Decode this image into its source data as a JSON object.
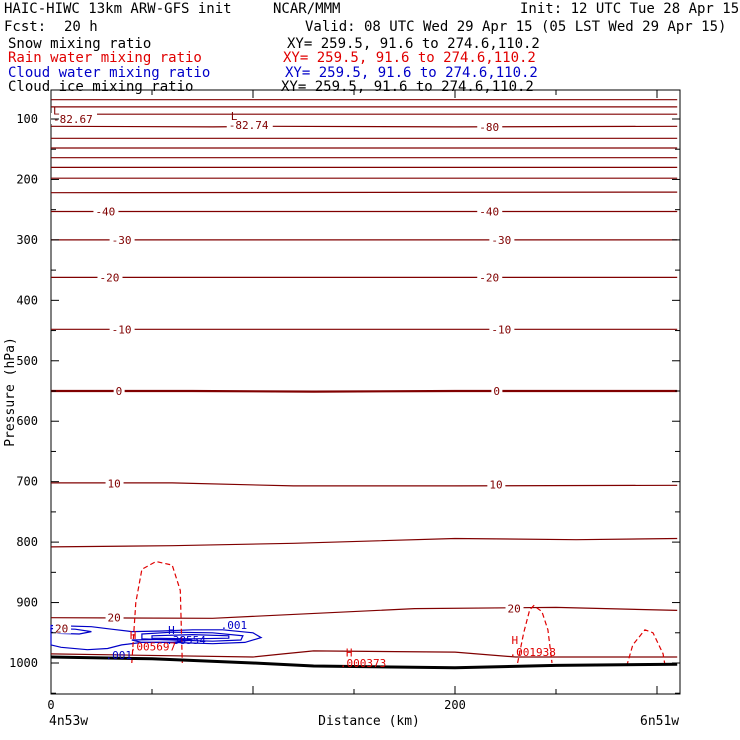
{
  "header": {
    "model": "HAIC-HIWC 13km ARW-GFS init",
    "org": "NCAR/MMM",
    "init": "Init: 12 UTC Tue 28 Apr 15",
    "fcst_label": "Fcst:",
    "fcst_value": "20 h",
    "valid": "Valid: 08 UTC Wed 29 Apr 15 (05 LST Wed 29 Apr 15)",
    "fields": [
      {
        "name": "Snow mixing ratio",
        "xy": "XY= 259.5, 91.6 to 274.6,110.2",
        "color": "#000000"
      },
      {
        "name": "Rain water mixing ratio",
        "xy": "XY= 259.5, 91.6 to 274.6,110.2",
        "color": "#e00000"
      },
      {
        "name": "Cloud water mixing ratio",
        "xy": "XY= 259.5, 91.6 to 274.6,110.2",
        "color": "#0000c8"
      },
      {
        "name": "Cloud ice mixing ratio",
        "xy": "XY= 259.5, 91.6 to 274.6,110.2",
        "color": "#000000"
      }
    ]
  },
  "chart_data": {
    "type": "cross-section contour",
    "ylabel": "Pressure (hPa)",
    "xlabel": "Distance (km)",
    "y_ticks": [
      100,
      200,
      300,
      400,
      500,
      600,
      700,
      800,
      900,
      1000
    ],
    "x_ticks": [
      0,
      200
    ],
    "ylim": [
      1050,
      50
    ],
    "xlim": [
      0,
      310
    ],
    "left_endpoint": "4n53w",
    "right_endpoint": "6n51w",
    "colors": {
      "temperature": "#800000",
      "rain": "#e00000",
      "cloud_water": "#0000c8",
      "terrain": "#000000"
    },
    "temperature_labels": [
      {
        "text": "-82.67",
        "x": 1,
        "p": 100
      },
      {
        "text": "-82.74",
        "x": 88,
        "p": 110
      },
      {
        "text": "-80",
        "x": 212,
        "p": 113
      },
      {
        "text": "-40",
        "x": 22,
        "p": 253
      },
      {
        "text": "-40",
        "x": 212,
        "p": 253
      },
      {
        "text": "-30",
        "x": 30,
        "p": 300
      },
      {
        "text": "-30",
        "x": 218,
        "p": 300
      },
      {
        "text": "-20",
        "x": 24,
        "p": 362
      },
      {
        "text": "-20",
        "x": 212,
        "p": 362
      },
      {
        "text": "-10",
        "x": 30,
        "p": 448
      },
      {
        "text": "-10",
        "x": 218,
        "p": 448
      },
      {
        "text": "0",
        "x": 32,
        "p": 550
      },
      {
        "text": "0",
        "x": 219,
        "p": 550
      },
      {
        "text": "10",
        "x": 28,
        "p": 703
      },
      {
        "text": "10",
        "x": 217,
        "p": 705
      },
      {
        "text": "20",
        "x": 28,
        "p": 925
      },
      {
        "text": "20",
        "x": 226,
        "p": 910
      },
      {
        "text": "20",
        "x": 2,
        "p": 943
      }
    ],
    "extrema_labels": [
      {
        "text": "L",
        "x": 1,
        "p": 86,
        "color": "#800000"
      },
      {
        "text": "L",
        "x": 89,
        "p": 95,
        "color": "#800000"
      },
      {
        "text": "H",
        "x": 58,
        "p": 945,
        "color": "#0000c8"
      },
      {
        "text": ".38554",
        "x": 57,
        "p": 962,
        "color": "#0000c8"
      },
      {
        "text": ".001",
        "x": 84,
        "p": 937,
        "color": "#0000c8"
      },
      {
        "text": ".001",
        "x": 27,
        "p": 987,
        "color": "#0000c8"
      },
      {
        "text": "H",
        "x": 39,
        "p": 954,
        "color": "#e00000"
      },
      {
        "text": ".005697",
        "x": 39,
        "p": 973,
        "color": "#e00000"
      },
      {
        "text": "H",
        "x": 146,
        "p": 983,
        "color": "#e00000"
      },
      {
        "text": ".000373",
        "x": 143,
        "p": 1000,
        "color": "#e00000"
      },
      {
        "text": "H",
        "x": 228,
        "p": 962,
        "color": "#e00000"
      },
      {
        "text": ".001938",
        "x": 227,
        "p": 982,
        "color": "#e00000"
      }
    ],
    "isotherms": [
      [
        [
          0,
          68
        ],
        [
          310,
          68
        ]
      ],
      [
        [
          0,
          80
        ],
        [
          310,
          80
        ]
      ],
      [
        [
          0,
          92
        ],
        [
          310,
          92
        ]
      ],
      [
        [
          0,
          112
        ],
        [
          80,
          113
        ],
        [
          110,
          112
        ],
        [
          200,
          113
        ],
        [
          310,
          112
        ]
      ],
      [
        [
          0,
          132
        ],
        [
          310,
          132
        ]
      ],
      [
        [
          0,
          148
        ],
        [
          310,
          148
        ]
      ],
      [
        [
          0,
          164
        ],
        [
          310,
          164
        ]
      ],
      [
        [
          0,
          180
        ],
        [
          310,
          180
        ]
      ],
      [
        [
          0,
          198
        ],
        [
          310,
          198
        ]
      ],
      [
        [
          0,
          222
        ],
        [
          310,
          221
        ]
      ],
      [
        [
          0,
          253
        ],
        [
          310,
          253
        ]
      ],
      [
        [
          0,
          300
        ],
        [
          310,
          300
        ]
      ],
      [
        [
          0,
          362
        ],
        [
          310,
          362
        ]
      ],
      [
        [
          0,
          448
        ],
        [
          310,
          448
        ]
      ],
      [
        [
          0,
          550
        ],
        [
          70,
          550
        ],
        [
          130,
          551
        ],
        [
          200,
          550
        ],
        [
          310,
          550
        ]
      ],
      [
        [
          0,
          702
        ],
        [
          60,
          702
        ],
        [
          120,
          707
        ],
        [
          200,
          707
        ],
        [
          310,
          706
        ]
      ],
      [
        [
          0,
          808
        ],
        [
          60,
          806
        ],
        [
          120,
          802
        ],
        [
          200,
          794
        ],
        [
          260,
          796
        ],
        [
          310,
          794
        ]
      ],
      [
        [
          0,
          925
        ],
        [
          80,
          926
        ],
        [
          180,
          910
        ],
        [
          250,
          908
        ],
        [
          310,
          913
        ]
      ],
      [
        [
          0,
          985
        ],
        [
          100,
          990
        ],
        [
          115,
          985
        ],
        [
          130,
          980
        ],
        [
          200,
          982
        ],
        [
          230,
          990
        ],
        [
          310,
          990
        ]
      ]
    ],
    "terrain": [
      [
        0,
        990
      ],
      [
        50,
        993
      ],
      [
        100,
        1000
      ],
      [
        130,
        1005
      ],
      [
        200,
        1008
      ],
      [
        250,
        1004
      ],
      [
        310,
        1002
      ]
    ],
    "rain_contours": [
      [
        [
          40,
          1000
        ],
        [
          42,
          900
        ],
        [
          45,
          845
        ],
        [
          52,
          832
        ],
        [
          60,
          838
        ],
        [
          64,
          880
        ],
        [
          65,
          1000
        ]
      ],
      [
        [
          231,
          1000
        ],
        [
          234,
          950
        ],
        [
          237,
          912
        ],
        [
          239,
          905
        ],
        [
          243,
          915
        ],
        [
          246,
          945
        ],
        [
          248,
          1000
        ]
      ],
      [
        [
          285,
          1005
        ],
        [
          288,
          970
        ],
        [
          294,
          945
        ],
        [
          298,
          950
        ],
        [
          303,
          985
        ],
        [
          304,
          1005
        ]
      ]
    ],
    "cloud_water_contours": [
      [
        [
          0,
          938
        ],
        [
          20,
          940
        ],
        [
          30,
          944
        ],
        [
          40,
          948
        ],
        [
          55,
          947
        ],
        [
          70,
          945
        ],
        [
          85,
          945
        ],
        [
          100,
          950
        ],
        [
          104,
          958
        ],
        [
          96,
          966
        ],
        [
          80,
          968
        ],
        [
          60,
          966
        ],
        [
          45,
          966
        ],
        [
          35,
          970
        ],
        [
          28,
          976
        ],
        [
          18,
          978
        ],
        [
          5,
          974
        ],
        [
          0,
          970
        ]
      ],
      [
        [
          45,
          952
        ],
        [
          60,
          949
        ],
        [
          80,
          950
        ],
        [
          95,
          955
        ],
        [
          94,
          962
        ],
        [
          80,
          964
        ],
        [
          60,
          962
        ],
        [
          45,
          960
        ]
      ],
      [
        [
          50,
          955
        ],
        [
          70,
          953
        ],
        [
          88,
          955
        ],
        [
          88,
          959
        ],
        [
          70,
          960
        ],
        [
          50,
          959
        ]
      ],
      [
        [
          0,
          943
        ],
        [
          12,
          944
        ],
        [
          20,
          948
        ],
        [
          14,
          952
        ],
        [
          4,
          951
        ],
        [
          0,
          949
        ]
      ],
      [
        [
          40,
          962
        ],
        [
          55,
          961
        ],
        [
          70,
          962
        ],
        [
          60,
          966
        ],
        [
          45,
          966
        ]
      ]
    ]
  }
}
